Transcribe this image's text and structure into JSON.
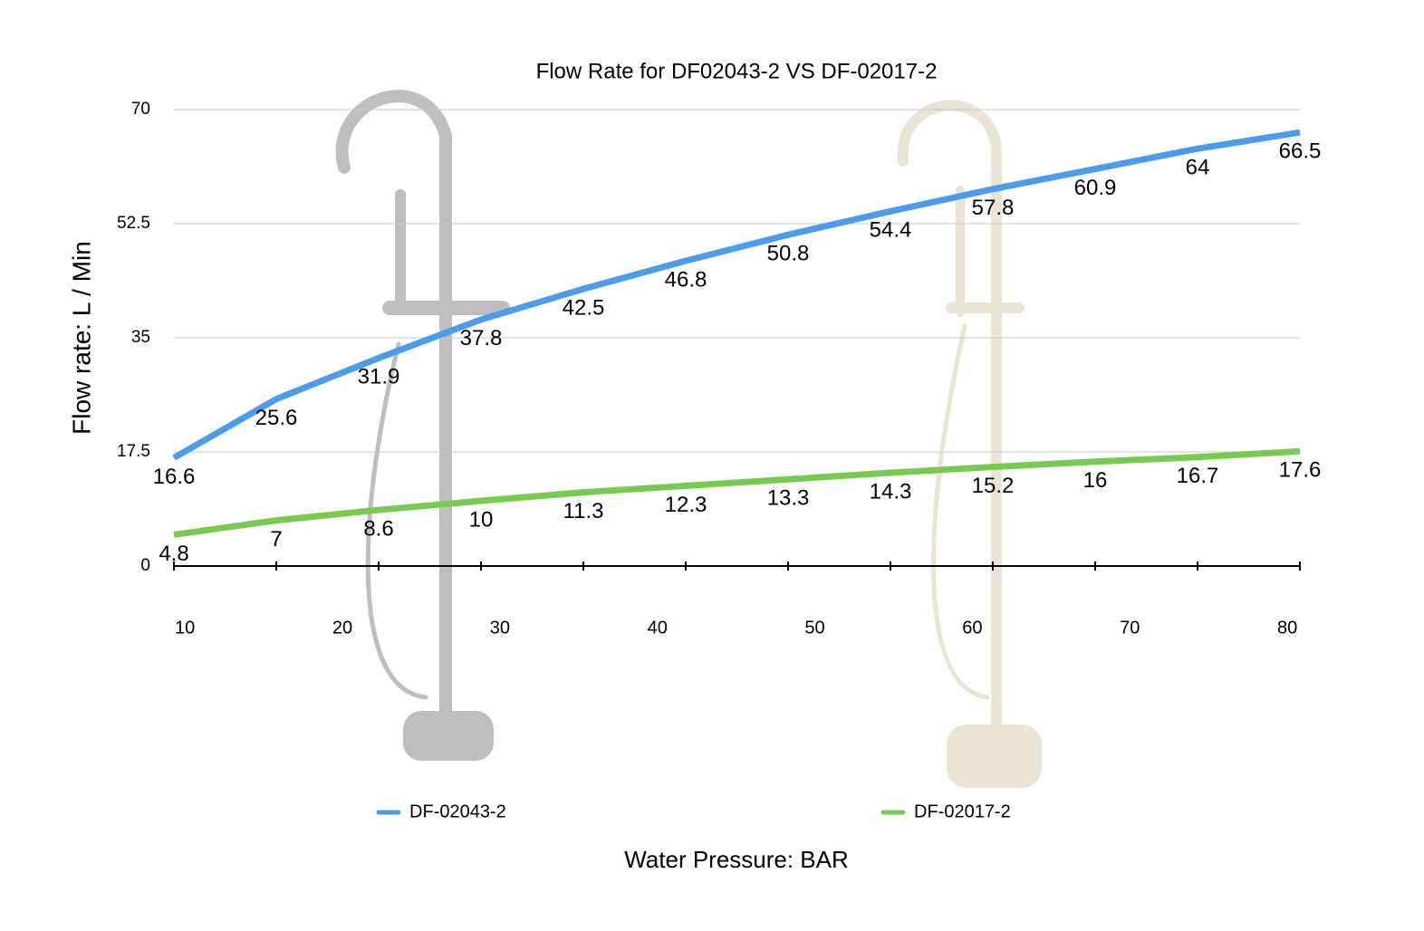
{
  "chart_data": {
    "type": "line",
    "title": "Flow Rate for DF02043-2 VS DF-02017-2",
    "ylabel": "Flow rate:  L / Min",
    "xlabel": "Water Pressure: BAR",
    "x": [
      9.3,
      15.8,
      22.3,
      28.8,
      35.3,
      41.8,
      48.3,
      54.8,
      61.3,
      67.8,
      74.3,
      80.8
    ],
    "series": [
      {
        "name": "DF-02043-2",
        "color": "#4a9cec",
        "values": [
          16.6,
          25.6,
          31.9,
          37.8,
          42.5,
          46.8,
          50.8,
          54.4,
          57.8,
          60.9,
          64,
          66.5
        ]
      },
      {
        "name": "DF-02017-2",
        "color": "#77cc4f",
        "values": [
          4.8,
          7,
          8.6,
          10,
          11.3,
          12.3,
          13.3,
          14.3,
          15.2,
          16,
          16.7,
          17.6
        ]
      }
    ],
    "xlim": [
      9.3,
      80.8
    ],
    "xticks": [
      10,
      20,
      30,
      40,
      50,
      60,
      70,
      80
    ],
    "ylim": [
      0,
      70
    ],
    "yticks": [
      0,
      17.5,
      35,
      52.5,
      70
    ],
    "grid": true,
    "legend": "bottom"
  }
}
